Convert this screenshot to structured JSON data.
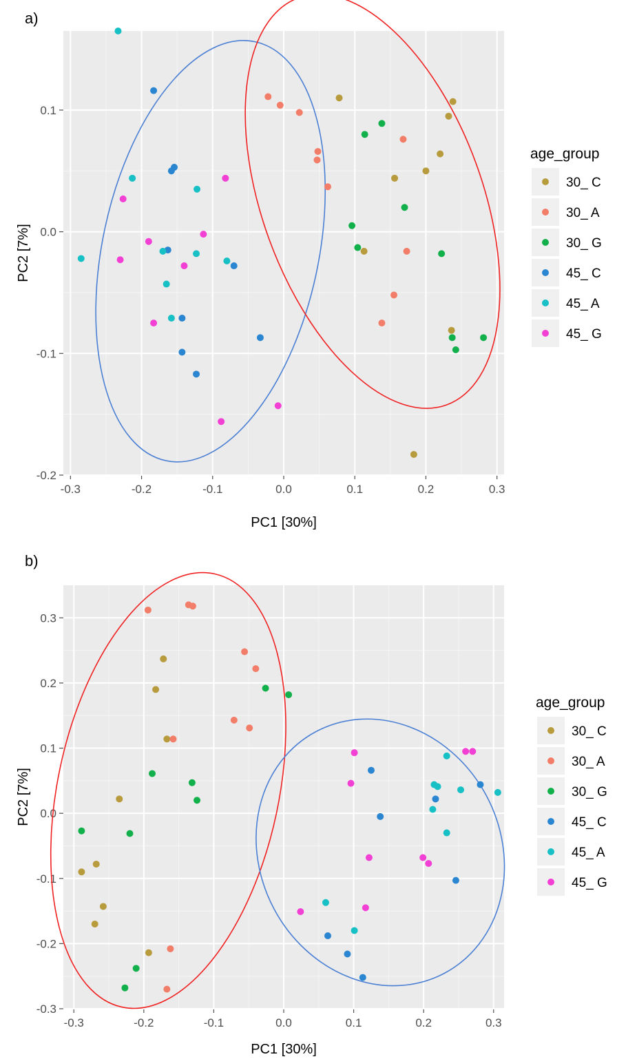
{
  "chart_data": [
    {
      "type": "scatter",
      "panel_label": "a)",
      "xlabel": "PC1 [30%]",
      "ylabel": "PC2 [7%]",
      "xlim": [
        -0.31,
        0.31
      ],
      "ylim": [
        -0.2,
        0.165
      ],
      "x_ticks": [
        -0.3,
        -0.2,
        -0.1,
        0.0,
        0.1,
        0.2,
        0.3
      ],
      "x_tick_labels": [
        "-0.3",
        "-0.2",
        "-0.1",
        "0.0",
        "0.1",
        "0.2",
        "0.3"
      ],
      "y_ticks": [
        0.1,
        0.0,
        -0.1,
        -0.2
      ],
      "y_tick_labels": [
        "0.1",
        "0.0",
        "-0.1",
        "-0.2"
      ],
      "grid": true,
      "legend_position": "right",
      "legend_title": "age_group",
      "ellipses": [
        {
          "color": "#4a7fd4",
          "cx": -0.103,
          "cy": -0.016,
          "rx": 0.152,
          "ry": 0.176,
          "angle_deg": 12
        },
        {
          "color": "#f02020",
          "cx": 0.125,
          "cy": 0.025,
          "rx": 0.155,
          "ry": 0.178,
          "angle_deg": -20
        }
      ],
      "series": [
        {
          "name": "30_ C",
          "color": "#b79b3d",
          "points": [
            [
              0.078,
              0.11
            ],
            [
              0.238,
              0.107
            ],
            [
              0.232,
              0.095
            ],
            [
              0.22,
              0.064
            ],
            [
              0.2,
              0.05
            ],
            [
              0.156,
              0.044
            ],
            [
              0.113,
              -0.016
            ],
            [
              0.236,
              -0.081
            ],
            [
              0.183,
              -0.183
            ]
          ]
        },
        {
          "name": "30_ A",
          "color": "#f27d68",
          "points": [
            [
              -0.022,
              0.111
            ],
            [
              -0.005,
              0.104
            ],
            [
              0.022,
              0.098
            ],
            [
              0.048,
              0.066
            ],
            [
              0.047,
              0.059
            ],
            [
              0.062,
              0.037
            ],
            [
              0.168,
              0.076
            ],
            [
              0.173,
              -0.016
            ],
            [
              0.155,
              -0.052
            ],
            [
              0.138,
              -0.075
            ]
          ]
        },
        {
          "name": "30_ G",
          "color": "#12b04a",
          "points": [
            [
              0.138,
              0.089
            ],
            [
              0.114,
              0.08
            ],
            [
              0.17,
              0.02
            ],
            [
              0.096,
              0.005
            ],
            [
              0.104,
              -0.013
            ],
            [
              0.222,
              -0.018
            ],
            [
              0.237,
              -0.087
            ],
            [
              0.281,
              -0.087
            ],
            [
              0.242,
              -0.097
            ]
          ]
        },
        {
          "name": "45_ C",
          "color": "#2b86d1",
          "points": [
            [
              -0.183,
              0.116
            ],
            [
              -0.154,
              0.053
            ],
            [
              -0.158,
              0.05
            ],
            [
              -0.163,
              -0.015
            ],
            [
              -0.07,
              -0.028
            ],
            [
              -0.143,
              -0.071
            ],
            [
              -0.033,
              -0.087
            ],
            [
              -0.143,
              -0.099
            ],
            [
              -0.123,
              -0.117
            ]
          ]
        },
        {
          "name": "45_ A",
          "color": "#16c0c4",
          "points": [
            [
              -0.233,
              0.165
            ],
            [
              -0.213,
              0.044
            ],
            [
              -0.122,
              0.035
            ],
            [
              -0.285,
              -0.022
            ],
            [
              -0.17,
              -0.016
            ],
            [
              -0.123,
              -0.018
            ],
            [
              -0.08,
              -0.024
            ],
            [
              -0.165,
              -0.043
            ],
            [
              -0.158,
              -0.071
            ]
          ]
        },
        {
          "name": "45_ G",
          "color": "#f23fd4",
          "points": [
            [
              -0.226,
              0.027
            ],
            [
              -0.082,
              0.044
            ],
            [
              -0.113,
              -0.002
            ],
            [
              -0.19,
              -0.008
            ],
            [
              -0.23,
              -0.023
            ],
            [
              -0.14,
              -0.028
            ],
            [
              -0.183,
              -0.075
            ],
            [
              -0.008,
              -0.143
            ],
            [
              -0.088,
              -0.156
            ]
          ]
        }
      ]
    },
    {
      "type": "scatter",
      "panel_label": "b)",
      "xlabel": "PC1 [30%]",
      "ylabel": "PC2 [7%]",
      "xlim": [
        -0.315,
        0.315
      ],
      "ylim": [
        -0.3,
        0.35
      ],
      "x_ticks": [
        -0.3,
        -0.2,
        -0.1,
        0.0,
        0.1,
        0.2,
        0.3
      ],
      "x_tick_labels": [
        "-0.3",
        "-0.2",
        "-0.1",
        "0.0",
        "0.1",
        "0.2",
        "0.3"
      ],
      "y_ticks": [
        0.3,
        0.2,
        0.1,
        0.0,
        -0.1,
        -0.2,
        -0.3
      ],
      "y_tick_labels": [
        "0.3",
        "0.2",
        "0.1",
        "0.0",
        "-0.1",
        "-0.2",
        "-0.3"
      ],
      "grid": true,
      "legend_position": "right",
      "legend_title": "age_group",
      "ellipses": [
        {
          "color": "#f02020",
          "cx": -0.165,
          "cy": 0.035,
          "rx": 0.158,
          "ry": 0.34,
          "angle_deg": 12
        },
        {
          "color": "#4a7fd4",
          "cx": 0.138,
          "cy": -0.06,
          "rx": 0.172,
          "ry": 0.21,
          "angle_deg": -28
        }
      ],
      "series": [
        {
          "name": "30_ C",
          "color": "#b79b3d",
          "points": [
            [
              -0.172,
              0.237
            ],
            [
              -0.183,
              0.19
            ],
            [
              -0.167,
              0.114
            ],
            [
              -0.235,
              0.022
            ],
            [
              -0.268,
              -0.078
            ],
            [
              -0.289,
              -0.09
            ],
            [
              -0.258,
              -0.143
            ],
            [
              -0.27,
              -0.17
            ],
            [
              -0.193,
              -0.214
            ]
          ]
        },
        {
          "name": "30_ A",
          "color": "#f27d68",
          "points": [
            [
              -0.194,
              0.312
            ],
            [
              -0.136,
              0.32
            ],
            [
              -0.13,
              0.318
            ],
            [
              -0.056,
              0.248
            ],
            [
              -0.04,
              0.222
            ],
            [
              -0.071,
              0.143
            ],
            [
              -0.049,
              0.131
            ],
            [
              -0.158,
              0.114
            ],
            [
              -0.162,
              -0.208
            ],
            [
              -0.167,
              -0.27
            ]
          ]
        },
        {
          "name": "30_ G",
          "color": "#12b04a",
          "points": [
            [
              -0.026,
              0.192
            ],
            [
              0.007,
              0.182
            ],
            [
              -0.188,
              0.061
            ],
            [
              -0.131,
              0.047
            ],
            [
              -0.124,
              0.02
            ],
            [
              -0.289,
              -0.027
            ],
            [
              -0.22,
              -0.031
            ],
            [
              -0.211,
              -0.238
            ],
            [
              -0.227,
              -0.268
            ]
          ]
        },
        {
          "name": "45_ C",
          "color": "#2b86d1",
          "points": [
            [
              0.125,
              0.066
            ],
            [
              0.217,
              0.022
            ],
            [
              0.138,
              -0.005
            ],
            [
              0.281,
              0.044
            ],
            [
              0.246,
              -0.103
            ],
            [
              0.063,
              -0.188
            ],
            [
              0.091,
              -0.216
            ],
            [
              0.113,
              -0.252
            ]
          ]
        },
        {
          "name": "45_ A",
          "color": "#16c0c4",
          "points": [
            [
              0.233,
              0.088
            ],
            [
              0.215,
              0.044
            ],
            [
              0.22,
              0.041
            ],
            [
              0.253,
              0.036
            ],
            [
              0.306,
              0.032
            ],
            [
              0.213,
              0.006
            ],
            [
              0.233,
              -0.03
            ],
            [
              0.06,
              -0.137
            ],
            [
              0.101,
              -0.18
            ]
          ]
        },
        {
          "name": "45_ G",
          "color": "#f23fd4",
          "points": [
            [
              0.101,
              0.093
            ],
            [
              0.26,
              0.095
            ],
            [
              0.27,
              0.095
            ],
            [
              0.096,
              0.046
            ],
            [
              0.122,
              -0.068
            ],
            [
              0.199,
              -0.068
            ],
            [
              0.207,
              -0.077
            ],
            [
              0.117,
              -0.145
            ],
            [
              0.024,
              -0.151
            ]
          ]
        }
      ]
    }
  ]
}
